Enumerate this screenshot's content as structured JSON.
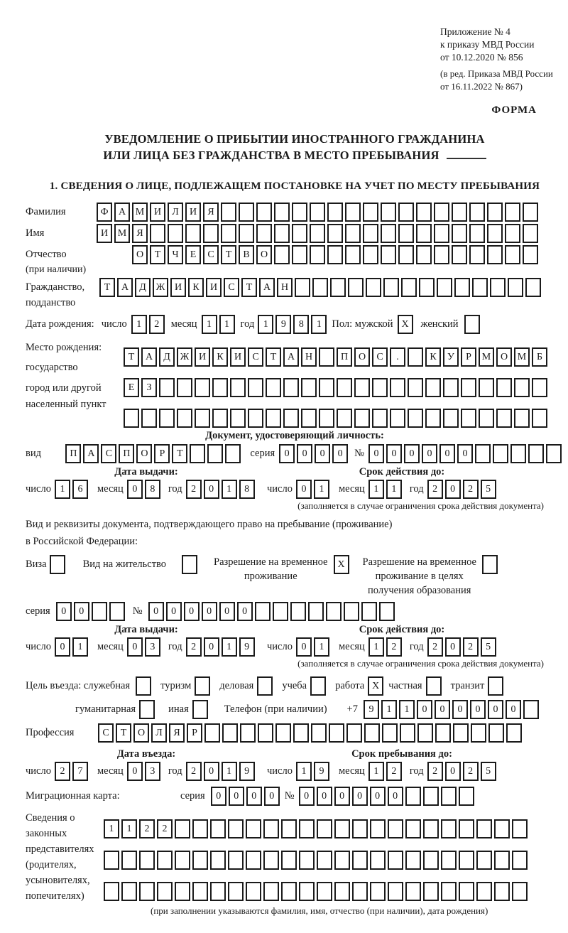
{
  "colors": {
    "ink": "#1a1a1a",
    "paper": "#ffffff"
  },
  "header": {
    "appendix_line1": "Приложение № 4",
    "appendix_line2": "к приказу МВД России",
    "appendix_line3": "от 10.12.2020 № 856",
    "edition_line1": "(в ред. Приказа МВД России",
    "edition_line2": "от 16.11.2022 № 867)",
    "forma": "ФОРМА"
  },
  "title": {
    "line1": "УВЕДОМЛЕНИЕ О ПРИБЫТИИ ИНОСТРАННОГО ГРАЖДАНИНА",
    "line2": "ИЛИ ЛИЦА БЕЗ ГРАЖДАНСТВА В МЕСТО ПРЕБЫВАНИЯ"
  },
  "section1_heading": "1. СВЕДЕНИЯ О ЛИЦЕ, ПОДЛЕЖАЩЕМ ПОСТАНОВКЕ НА УЧЕТ ПО МЕСТУ ПРЕБЫВАНИЯ",
  "labels": {
    "day": "число",
    "month": "месяц",
    "year": "год",
    "seriya": "серия",
    "num": "№",
    "issue_date": "Дата выдачи:",
    "valid_until": "Срок действия до:",
    "validity_note": "(заполняется в случае ограничения срока действия документа)"
  },
  "person": {
    "surname_label": "Фамилия",
    "surname": {
      "text": "ФАМИЛИЯ",
      "count": 25
    },
    "name_label": "Имя",
    "name": {
      "text": "ИМЯ",
      "count": 25
    },
    "patronymic_label": "Отчество",
    "patronymic_note": "(при наличии)",
    "patronymic": {
      "text": "ОТЧЕСТВО",
      "count": 23
    },
    "citizenship_label1": "Гражданство,",
    "citizenship_label2": "подданство",
    "citizenship": {
      "text": "ТАДЖИКИСТАН",
      "count": 25
    },
    "birth_date_label": "Дата рождения:",
    "birth_day": {
      "text": "12",
      "count": 2
    },
    "birth_month": {
      "text": "11",
      "count": 2
    },
    "birth_year": {
      "text": "1981",
      "count": 4
    },
    "gender_label": "Пол: мужской",
    "male_checkbox": {
      "text": "X",
      "count": 1
    },
    "female_label": "женский",
    "female_checkbox": {
      "text": "",
      "count": 1
    },
    "birth_place_label1": "Место рождения:",
    "birth_place_label2": "государство",
    "birth_place_label3": "город или другой",
    "birth_place_label4": "населенный пункт",
    "birth_place_row1": {
      "text": "ТАДЖИКИСТАН ПОС. КУРМОМБ",
      "count": 24
    },
    "birth_place_row2": {
      "text": "ЕЗ",
      "count": 24
    },
    "birth_place_row3": {
      "text": "",
      "count": 24
    }
  },
  "identity_doc": {
    "heading": "Документ, удостоверяющий личность:",
    "type_label": "вид",
    "type": {
      "text": "ПАСПОРТ",
      "count": 10
    },
    "seriya": {
      "text": "0000",
      "count": 4
    },
    "number": {
      "text": "000000",
      "count": 11
    },
    "issue_day": {
      "text": "16",
      "count": 2
    },
    "issue_month": {
      "text": "08",
      "count": 2
    },
    "issue_year": {
      "text": "2018",
      "count": 4
    },
    "valid_day": {
      "text": "01",
      "count": 2
    },
    "valid_month": {
      "text": "11",
      "count": 2
    },
    "valid_year": {
      "text": "2025",
      "count": 4
    }
  },
  "residence_doc": {
    "intro_line1": "Вид и реквизиты документа, подтверждающего право на пребывание (проживание)",
    "intro_line2": "в Российской Федерации:",
    "visa_label": "Виза",
    "visa_checkbox": {
      "text": "",
      "count": 1
    },
    "residence_permit_label": "Вид на жительство",
    "residence_permit_checkbox": {
      "text": "",
      "count": 1
    },
    "temp_residence_label1": "Разрешение на временное",
    "temp_residence_label2": "проживание",
    "temp_residence_checkbox": {
      "text": "X",
      "count": 1
    },
    "temp_residence_edu_label1": "Разрешение на временное",
    "temp_residence_edu_label2": "проживание в целях",
    "temp_residence_edu_label3": "получения образования",
    "temp_residence_edu_checkbox": {
      "text": "",
      "count": 1
    },
    "seriya": {
      "text": "00",
      "count": 4
    },
    "number": {
      "text": "000000",
      "count": 14
    },
    "issue_day": {
      "text": "01",
      "count": 2
    },
    "issue_month": {
      "text": "03",
      "count": 2
    },
    "issue_year": {
      "text": "2019",
      "count": 4
    },
    "valid_day": {
      "text": "01",
      "count": 2
    },
    "valid_month": {
      "text": "12",
      "count": 2
    },
    "valid_year": {
      "text": "2025",
      "count": 4
    }
  },
  "entry": {
    "purpose_label": "Цель въезда: служебная",
    "opt_business": {
      "text": "",
      "count": 1
    },
    "opt_tourism_label": "туризм",
    "opt_tourism": {
      "text": "",
      "count": 1
    },
    "opt_commercial_label": "деловая",
    "opt_commercial": {
      "text": "",
      "count": 1
    },
    "opt_study_label": "учеба",
    "opt_study": {
      "text": "",
      "count": 1
    },
    "opt_work_label": "работа",
    "opt_work": {
      "text": "X",
      "count": 1
    },
    "opt_private_label": "частная",
    "opt_private": {
      "text": "",
      "count": 1
    },
    "opt_transit_label": "транзит",
    "opt_transit": {
      "text": "",
      "count": 1
    },
    "opt_humanitarian_label": "гуманитарная",
    "opt_humanitarian": {
      "text": "",
      "count": 1
    },
    "opt_other_label": "иная",
    "opt_other": {
      "text": "",
      "count": 1
    },
    "phone_label": "Телефон (при наличии)",
    "phone_prefix": "+7",
    "phone": {
      "text": "911000000",
      "count": 10
    },
    "profession_label": "Профессия",
    "profession": {
      "text": "СТОЛЯР",
      "count": 24
    },
    "entry_date_title": "Дата въезда:",
    "stay_until_title": "Срок пребывания до:",
    "entry_day": {
      "text": "27",
      "count": 2
    },
    "entry_month": {
      "text": "03",
      "count": 2
    },
    "entry_year": {
      "text": "2019",
      "count": 4
    },
    "stay_day": {
      "text": "19",
      "count": 2
    },
    "stay_month": {
      "text": "12",
      "count": 2
    },
    "stay_year": {
      "text": "2025",
      "count": 4
    },
    "migration_card_label": "Миграционная карта:",
    "migration_seriya": {
      "text": "0000",
      "count": 4
    },
    "migration_number": {
      "text": "000000",
      "count": 10
    }
  },
  "representatives": {
    "label_line1": "Сведения о",
    "label_line2": "законных",
    "label_line3": "представителях",
    "label_line4": "(родителях,",
    "label_line5": "усыновителях,",
    "label_line6": "попечителях)",
    "row1": {
      "text": "1122",
      "count": 24
    },
    "row2": {
      "text": "",
      "count": 24
    },
    "row3": {
      "text": "",
      "count": 24
    },
    "note": "(при заполнении указываются фамилия, имя, отчество (при наличии), дата рождения)"
  }
}
